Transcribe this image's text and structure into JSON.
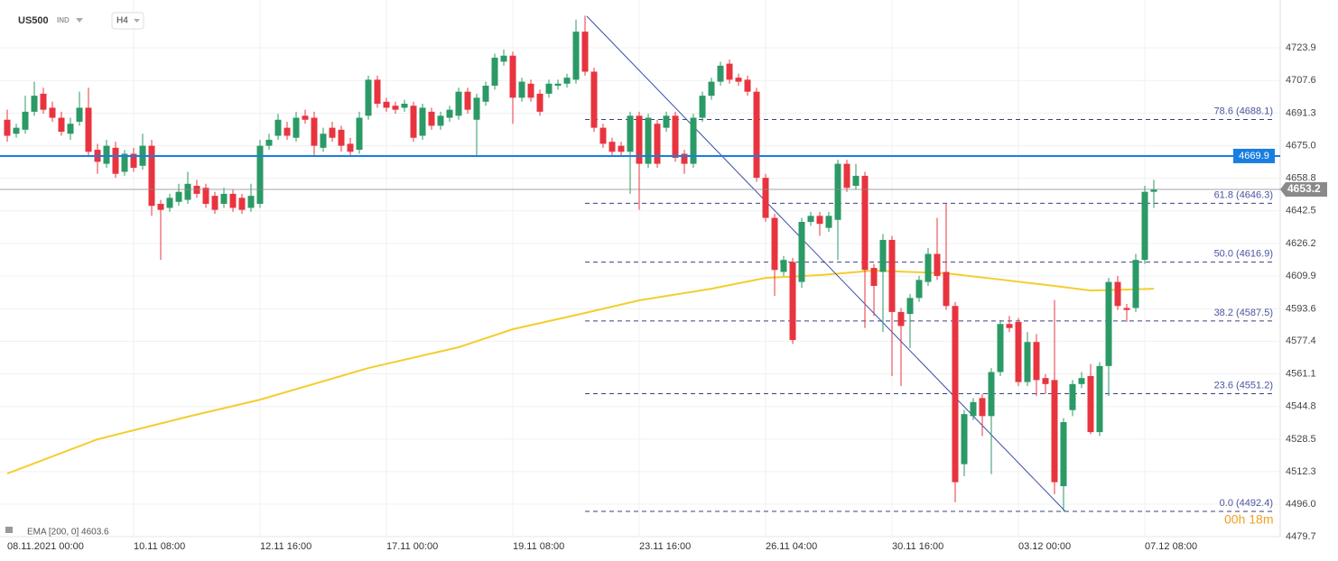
{
  "header": {
    "symbol": "US500",
    "market": "IND",
    "interval": "H4"
  },
  "footer": {
    "indicator": "EMA [200, 0] 4603.6",
    "timer": "00h 18m"
  },
  "chart_data": {
    "type": "candlestick",
    "up_color": "#2b9a66",
    "down_color": "#e8343f",
    "grid": true,
    "xlim": [
      -0.8,
      141
    ],
    "ylim": [
      4479.8,
      4747.8
    ],
    "yticks": [
      4479.7,
      {
        "value": 4496,
        "label": "4496.0"
      },
      4512.3,
      4528.5,
      4544.8,
      4561.1,
      4577.4,
      4593.6,
      4609.9,
      4626.2,
      4642.5,
      4658.8,
      {
        "value": 4675,
        "label": "4675.0"
      },
      4691.3,
      4707.6,
      4723.9
    ],
    "xticks": [
      {
        "value": 0,
        "label": "08.11.2021 00:00"
      },
      {
        "value": 14,
        "label": "10.11 08:00"
      },
      {
        "value": 28,
        "label": "12.11 16:00"
      },
      {
        "value": 42,
        "label": "17.11 00:00"
      },
      {
        "value": 56,
        "label": "19.11 08:00"
      },
      {
        "value": 70,
        "label": "23.11 16:00"
      },
      {
        "value": 84,
        "label": "26.11 04:00"
      },
      {
        "value": 98,
        "label": "30.11 16:00"
      },
      {
        "value": 112,
        "label": "03.12 00:00"
      },
      {
        "value": 126,
        "label": "07.12 08:00"
      }
    ],
    "candles": [
      [
        4688,
        4693,
        4677,
        4680
      ],
      [
        4681,
        4686,
        4679,
        4684
      ],
      [
        4683,
        4700,
        4681,
        4692
      ],
      [
        4692,
        4707,
        4690,
        4700
      ],
      [
        4701,
        4704,
        4691,
        4693
      ],
      [
        4694,
        4697,
        4687,
        4689
      ],
      [
        4689,
        4692,
        4680,
        4682
      ],
      [
        4681,
        4689,
        4678,
        4686
      ],
      [
        4687,
        4702,
        4685,
        4694
      ],
      [
        4694,
        4704,
        4670,
        4672
      ],
      [
        4673,
        4676,
        4661,
        4667
      ],
      [
        4666,
        4678,
        4664,
        4675
      ],
      [
        4674,
        4677,
        4659,
        4661
      ],
      [
        4662,
        4673,
        4660,
        4671
      ],
      [
        4671,
        4674,
        4662,
        4664
      ],
      [
        4665,
        4681,
        4663,
        4675
      ],
      [
        4675,
        4678,
        4640,
        4645
      ],
      [
        4646,
        4648,
        4618,
        4643
      ],
      [
        4644,
        4651,
        4642,
        4649
      ],
      [
        4647,
        4656,
        4645,
        4652
      ],
      [
        4648,
        4662,
        4646,
        4656
      ],
      [
        4655,
        4658,
        4649,
        4651
      ],
      [
        4654,
        4656,
        4644,
        4646
      ],
      [
        4650,
        4652,
        4641,
        4643
      ],
      [
        4646,
        4654,
        4644,
        4651
      ],
      [
        4651,
        4653,
        4642,
        4644
      ],
      [
        4649,
        4651,
        4641,
        4643
      ],
      [
        4644,
        4656,
        4642,
        4650
      ],
      [
        4646,
        4678,
        4644,
        4675
      ],
      [
        4675,
        4681,
        4673,
        4678
      ],
      [
        4680,
        4691,
        4678,
        4688
      ],
      [
        4684,
        4687,
        4678,
        4680
      ],
      [
        4679,
        4692,
        4677,
        4689
      ],
      [
        4690,
        4693,
        4686,
        4688
      ],
      [
        4689,
        4692,
        4670,
        4675
      ],
      [
        4674,
        4684,
        4672,
        4681
      ],
      [
        4684,
        4687,
        4677,
        4679
      ],
      [
        4683,
        4685,
        4672,
        4675
      ],
      [
        4676,
        4679,
        4670,
        4672
      ],
      [
        4673,
        4692,
        4671,
        4689
      ],
      [
        4690,
        4710,
        4688,
        4708
      ],
      [
        4708,
        4710,
        4694,
        4696
      ],
      [
        4697,
        4699,
        4692,
        4694
      ],
      [
        4695,
        4697,
        4691,
        4693
      ],
      [
        4694,
        4698,
        4692,
        4696
      ],
      [
        4695,
        4697,
        4677,
        4679
      ],
      [
        4680,
        4696,
        4678,
        4694
      ],
      [
        4692,
        4694,
        4683,
        4685
      ],
      [
        4685,
        4692,
        4683,
        4690
      ],
      [
        4689,
        4695,
        4687,
        4693
      ],
      [
        4690,
        4704,
        4688,
        4702
      ],
      [
        4702,
        4704,
        4691,
        4693
      ],
      [
        4688,
        4701,
        4670,
        4699
      ],
      [
        4697,
        4707,
        4695,
        4705
      ],
      [
        4705,
        4721,
        4703,
        4719
      ],
      [
        4717,
        4723,
        4715,
        4720
      ],
      [
        4720,
        4722,
        4686,
        4699
      ],
      [
        4699,
        4709,
        4697,
        4707
      ],
      [
        4706,
        4708,
        4697,
        4699
      ],
      [
        4701,
        4703,
        4690,
        4692
      ],
      [
        4701,
        4708,
        4699,
        4706
      ],
      [
        4705,
        4708,
        4703,
        4706
      ],
      [
        4706,
        4711,
        4704,
        4709
      ],
      [
        4708,
        4738,
        4706,
        4732
      ],
      [
        4732,
        4740,
        4710,
        4712
      ],
      [
        4712,
        4714,
        4682,
        4684
      ],
      [
        4684,
        4686,
        4674,
        4676
      ],
      [
        4677,
        4679,
        4670,
        4672
      ],
      [
        4675,
        4677,
        4670,
        4672
      ],
      [
        4672,
        4692,
        4651,
        4690
      ],
      [
        4690,
        4692,
        4643,
        4666
      ],
      [
        4666,
        4691,
        4664,
        4689
      ],
      [
        4686,
        4688,
        4664,
        4666
      ],
      [
        4684,
        4692,
        4682,
        4690
      ],
      [
        4690,
        4692,
        4667,
        4669
      ],
      [
        4671,
        4673,
        4661,
        4666
      ],
      [
        4666,
        4691,
        4664,
        4689
      ],
      [
        4689,
        4702,
        4687,
        4700
      ],
      [
        4700,
        4709,
        4698,
        4707
      ],
      [
        4707,
        4717,
        4705,
        4715
      ],
      [
        4716,
        4718,
        4706,
        4708
      ],
      [
        4709,
        4711,
        4705,
        4707
      ],
      [
        4708,
        4710,
        4700,
        4702
      ],
      [
        4702,
        4704,
        4657,
        4659
      ],
      [
        4659,
        4661,
        4637,
        4639
      ],
      [
        4639,
        4641,
        4600,
        4613
      ],
      [
        4612,
        4620,
        4610,
        4618
      ],
      [
        4617,
        4619,
        4576,
        4578
      ],
      [
        4607,
        4639,
        4604,
        4637
      ],
      [
        4637,
        4642,
        4635,
        4640
      ],
      [
        4640,
        4642,
        4630,
        4636
      ],
      [
        4634,
        4642,
        4632,
        4640
      ],
      [
        4638,
        4668,
        4618,
        4666
      ],
      [
        4666,
        4668,
        4652,
        4654
      ],
      [
        4655,
        4666,
        4653,
        4660
      ],
      [
        4660,
        4662,
        4584,
        4613
      ],
      [
        4614,
        4616,
        4590,
        4605
      ],
      [
        4612,
        4631,
        4582,
        4628
      ],
      [
        4628,
        4630,
        4560,
        4592
      ],
      [
        4592,
        4594,
        4555,
        4585
      ],
      [
        4591,
        4601,
        4574,
        4599
      ],
      [
        4599,
        4610,
        4597,
        4608
      ],
      [
        4607,
        4624,
        4605,
        4621
      ],
      [
        4621,
        4639,
        4608,
        4610
      ],
      [
        4612,
        4646,
        4593,
        4595
      ],
      [
        4595,
        4597,
        4497,
        4507
      ],
      [
        4516,
        4543,
        4510,
        4541
      ],
      [
        4540,
        4549,
        4538,
        4547
      ],
      [
        4549,
        4551,
        4530,
        4540
      ],
      [
        4540,
        4564,
        4511,
        4562
      ],
      [
        4562,
        4588,
        4560,
        4586
      ],
      [
        4586,
        4590,
        4582,
        4584
      ],
      [
        4587,
        4589,
        4555,
        4557
      ],
      [
        4557,
        4582,
        4555,
        4577
      ],
      [
        4577,
        4581,
        4550,
        4558
      ],
      [
        4559,
        4561,
        4551,
        4556
      ],
      [
        4558,
        4598,
        4501,
        4507
      ],
      [
        4505,
        4539,
        4492.4,
        4537
      ],
      [
        4543,
        4558,
        4540,
        4556
      ],
      [
        4556,
        4562,
        4554,
        4559
      ],
      [
        4560,
        4566,
        4531,
        4532
      ],
      [
        4532,
        4567,
        4530,
        4565
      ],
      [
        4565,
        4609,
        4550,
        4607
      ],
      [
        4607,
        4610,
        4593,
        4595
      ],
      [
        4594,
        4596,
        4587,
        4593
      ],
      [
        4594,
        4621,
        4592,
        4618
      ],
      [
        4618,
        4655,
        4616,
        4652
      ],
      [
        4652,
        4658,
        4644,
        4653.2
      ]
    ],
    "ema": {
      "name": "EMA",
      "color": "#f5cd2e",
      "x": [
        0,
        10,
        20,
        28,
        40,
        50,
        56,
        64,
        70,
        78,
        84,
        90,
        96,
        104,
        110,
        116,
        120,
        127
      ],
      "values": [
        4511.3,
        4528.4,
        4539.7,
        4548.2,
        4564,
        4574.4,
        4583.4,
        4591.5,
        4597.8,
        4603.6,
        4609,
        4610.4,
        4612.7,
        4611.3,
        4608.2,
        4605,
        4602.7,
        4603.6
      ]
    },
    "hline": {
      "value": 4669.9,
      "color": "#1a7ee0"
    },
    "last_price": 4653.2,
    "trendline": {
      "x": [
        64.2,
        117.2
      ],
      "values": [
        4739.7,
        4492.4
      ],
      "color": "#3a4ea8"
    },
    "fib": {
      "x_start": 64,
      "levels": [
        {
          "value": 4688.1,
          "label": "78.6 (4688.1)"
        },
        {
          "value": 4646.3,
          "label": "61.8 (4646.3)"
        },
        {
          "value": 4616.9,
          "label": "50.0 (4616.9)"
        },
        {
          "value": 4587.5,
          "label": "38.2 (4587.5)"
        },
        {
          "value": 4551.2,
          "label": "23.6 (4551.2)"
        },
        {
          "value": 4492.4,
          "label": "0.0 (4492.4)"
        }
      ]
    }
  }
}
